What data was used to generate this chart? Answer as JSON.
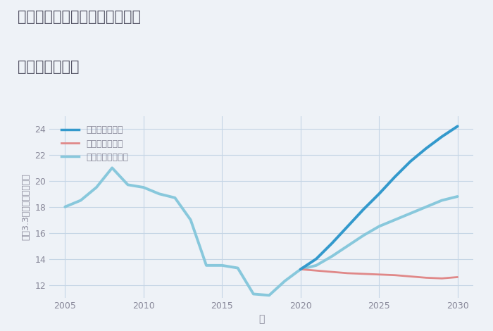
{
  "title_line1": "三重県いなべ市員弁町岡丁田の",
  "title_line2": "土地の価格推移",
  "xlabel": "年",
  "ylabel": "坪（3.3㎡）単価（万円）",
  "ylim": [
    11,
    25
  ],
  "xlim": [
    2004,
    2031
  ],
  "yticks": [
    12,
    14,
    16,
    18,
    20,
    22,
    24
  ],
  "xticks": [
    2005,
    2010,
    2015,
    2020,
    2025,
    2030
  ],
  "background_color": "#eef2f7",
  "plot_bg_color": "#eef2f7",
  "good_scenario": {
    "label": "グッドシナリオ",
    "color": "#3399cc",
    "linewidth": 2.8,
    "x": [
      2020,
      2021,
      2022,
      2023,
      2024,
      2025,
      2026,
      2027,
      2028,
      2029,
      2030
    ],
    "y": [
      13.2,
      14.0,
      15.2,
      16.5,
      17.8,
      19.0,
      20.3,
      21.5,
      22.5,
      23.4,
      24.2
    ]
  },
  "bad_scenario": {
    "label": "バッドシナリオ",
    "color": "#e08888",
    "linewidth": 2.0,
    "x": [
      2020,
      2021,
      2022,
      2023,
      2024,
      2025,
      2026,
      2027,
      2028,
      2029,
      2030
    ],
    "y": [
      13.2,
      13.1,
      13.0,
      12.9,
      12.85,
      12.8,
      12.75,
      12.65,
      12.55,
      12.5,
      12.6
    ]
  },
  "normal_scenario": {
    "label": "ノーマルシナリオ",
    "color": "#88c8dc",
    "linewidth": 2.8,
    "x": [
      2005,
      2006,
      2007,
      2008,
      2009,
      2010,
      2011,
      2012,
      2013,
      2014,
      2015,
      2016,
      2017,
      2018,
      2019,
      2020,
      2021,
      2022,
      2023,
      2024,
      2025,
      2026,
      2027,
      2028,
      2029,
      2030
    ],
    "y": [
      18.0,
      18.5,
      19.5,
      21.0,
      19.7,
      19.5,
      19.0,
      18.7,
      17.0,
      13.5,
      13.5,
      13.3,
      11.3,
      11.2,
      12.3,
      13.2,
      13.5,
      14.2,
      15.0,
      15.8,
      16.5,
      17.0,
      17.5,
      18.0,
      18.5,
      18.8
    ]
  },
  "grid_color": "#c5d5e5",
  "title_color": "#555566",
  "tick_color": "#888899",
  "label_color": "#888899"
}
